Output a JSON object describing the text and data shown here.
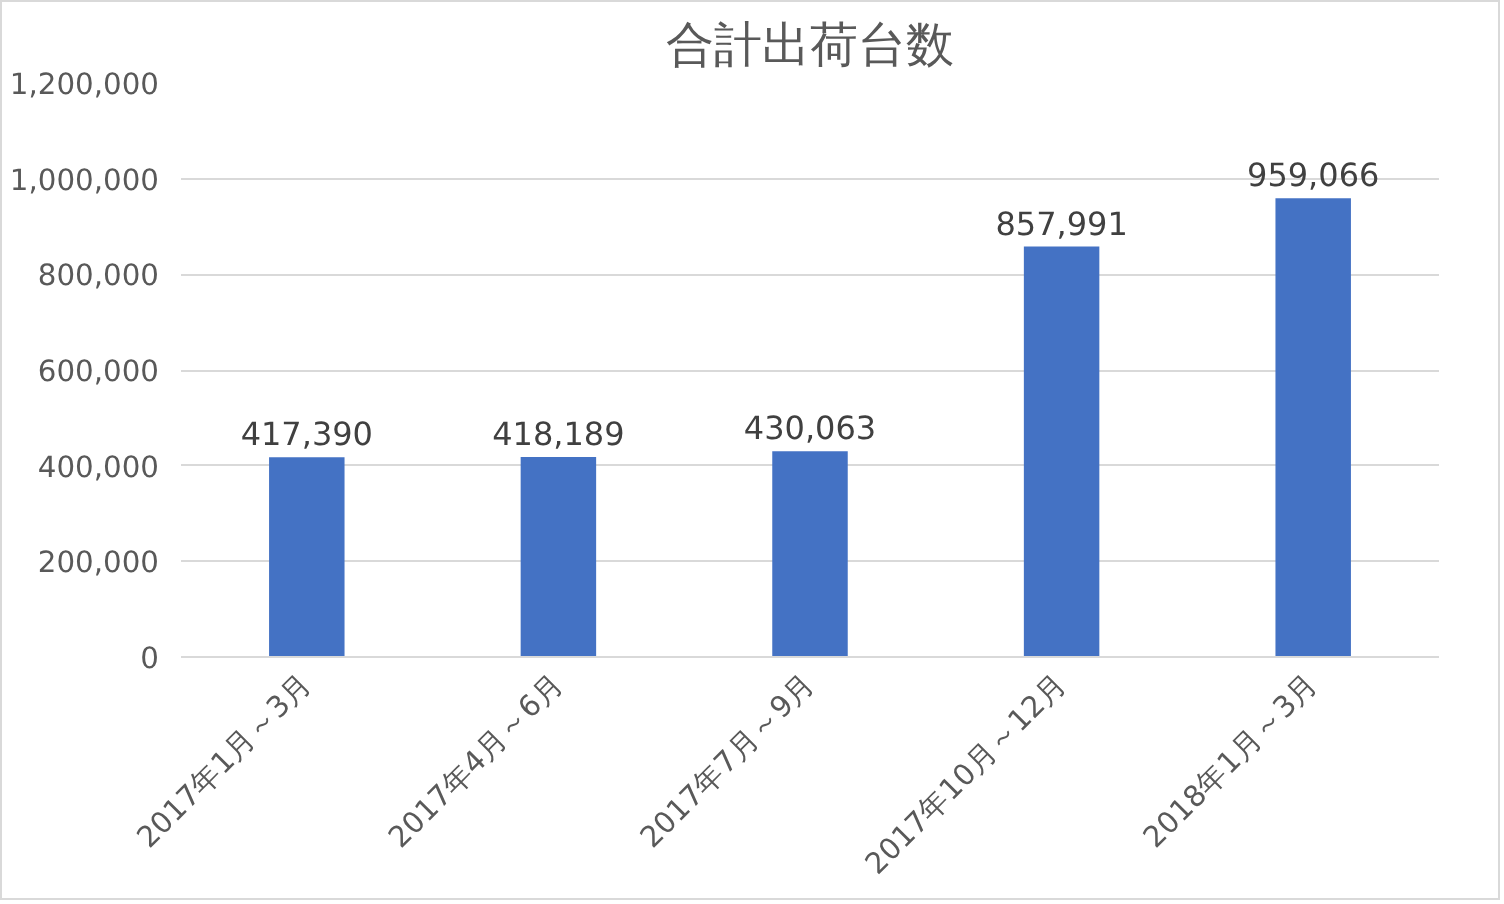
{
  "chart_data": {
    "type": "bar",
    "title": "合計出荷台数",
    "categories": [
      "2017年1月～3月",
      "2017年4月～6月",
      "2017年7月～9月",
      "2017年10月～12月",
      "2018年1月～3月"
    ],
    "values": [
      417390,
      418189,
      430063,
      857991,
      959066
    ],
    "color": "#4472c4",
    "ylim": [
      0,
      1200000
    ],
    "yticks": [
      {
        "value": 0,
        "label": "0"
      },
      {
        "value": 200000,
        "label": "200,000"
      },
      {
        "value": 400000,
        "label": "400,000"
      },
      {
        "value": 600000,
        "label": "600,000"
      },
      {
        "value": 800000,
        "label": "800,000"
      },
      {
        "value": 1000000,
        "label": "1,000,000"
      },
      {
        "value": 1200000,
        "label": "1,200,000"
      }
    ],
    "value_labels": [
      "417,390",
      "418,189",
      "430,063",
      "857,991",
      "959,066"
    ],
    "grid": "y"
  }
}
